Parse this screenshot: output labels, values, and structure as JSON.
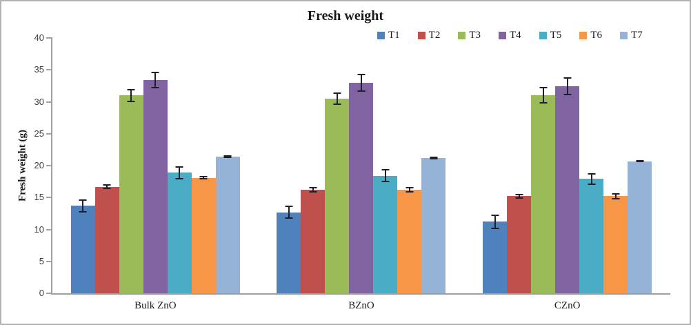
{
  "chart_data": {
    "type": "bar",
    "title": "Fresh weight",
    "ylabel": "Fresh weight (g)",
    "xlabel": "",
    "categories": [
      "Bulk ZnO",
      "BZnO",
      "CZnO"
    ],
    "ylim": [
      0,
      40
    ],
    "ytick_step": 5,
    "grid": false,
    "legend_position": "top-right-row",
    "error_bars": true,
    "series": [
      {
        "name": "T1",
        "color": "#4F81BD",
        "values": [
          13.7,
          12.7,
          11.2
        ],
        "errors": [
          0.9,
          0.9,
          1.0
        ]
      },
      {
        "name": "T2",
        "color": "#C0504D",
        "values": [
          16.7,
          16.2,
          15.2
        ],
        "errors": [
          0.3,
          0.3,
          0.3
        ]
      },
      {
        "name": "T3",
        "color": "#9BBB59",
        "values": [
          31.0,
          30.5,
          31.0
        ],
        "errors": [
          0.9,
          0.9,
          1.2
        ]
      },
      {
        "name": "T4",
        "color": "#8064A2",
        "values": [
          33.4,
          33.0,
          32.4
        ],
        "errors": [
          1.2,
          1.3,
          1.3
        ]
      },
      {
        "name": "T5",
        "color": "#4BACC6",
        "values": [
          18.9,
          18.4,
          17.9
        ],
        "errors": [
          0.9,
          0.9,
          0.8
        ]
      },
      {
        "name": "T6",
        "color": "#F79646",
        "values": [
          18.1,
          16.2,
          15.2
        ],
        "errors": [
          0.2,
          0.3,
          0.4
        ]
      },
      {
        "name": "T7",
        "color": "#95B3D7",
        "values": [
          21.4,
          21.2,
          20.7
        ],
        "errors": [
          0.1,
          0.1,
          0.1
        ]
      }
    ],
    "colors": {
      "axis": "#9f9f9f",
      "error_bar": "#1f1f2a",
      "title_text": "#1a1a1a",
      "tick_text": "#3d3d3d"
    }
  }
}
